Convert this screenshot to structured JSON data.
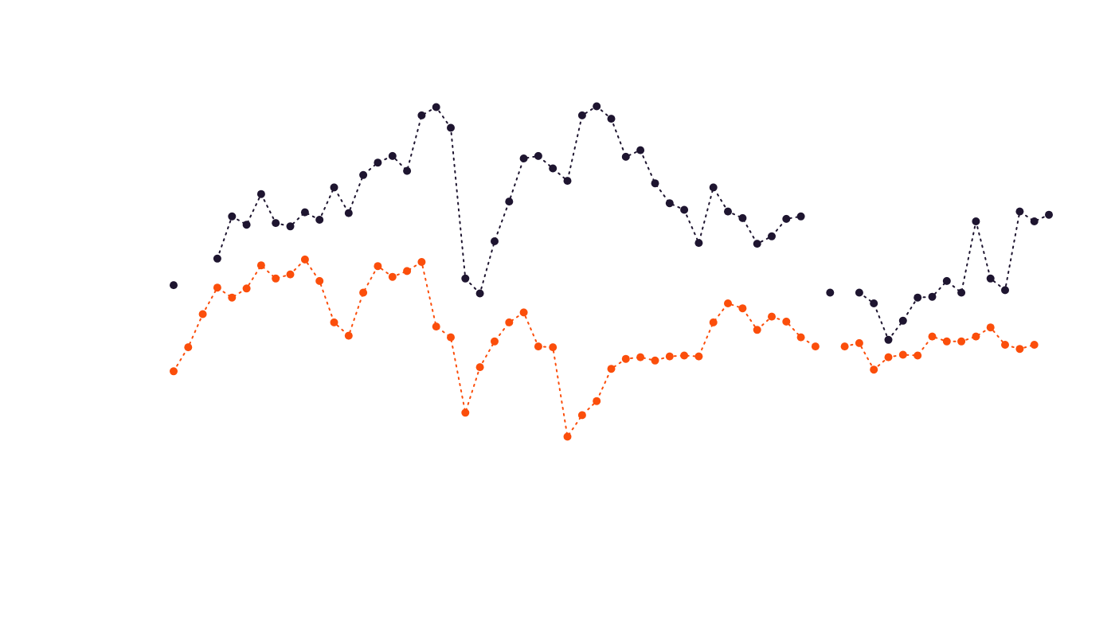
{
  "chart_data": {
    "type": "line",
    "title": "",
    "xlabel": "",
    "ylabel": "",
    "grid": false,
    "legend": "none",
    "x": [
      1,
      2,
      3,
      4,
      5,
      6,
      7,
      8,
      9,
      10,
      11,
      12,
      13,
      14,
      15,
      16,
      17,
      18,
      19,
      20,
      21,
      22,
      23,
      24,
      25,
      26,
      27,
      28,
      29,
      30,
      31,
      32,
      33,
      34,
      35,
      36,
      37,
      38,
      39,
      40,
      41,
      42,
      43,
      44,
      45,
      46,
      47,
      48,
      49,
      50,
      51,
      52,
      53,
      54,
      55,
      56,
      57,
      58,
      59,
      60,
      61
    ],
    "xlim": [
      1,
      61
    ],
    "ylim": [
      0,
      100
    ],
    "series": [
      {
        "color": "#1e1530",
        "line_style": "dotted",
        "marker": "circle",
        "values": [
          49.4,
          null,
          null,
          55.8,
          66.0,
          64.0,
          71.4,
          64.4,
          63.6,
          67.0,
          65.2,
          73.0,
          66.8,
          76.0,
          79.0,
          80.6,
          77.0,
          90.4,
          92.4,
          87.4,
          51.0,
          47.4,
          60.0,
          69.6,
          80.0,
          80.6,
          77.6,
          74.6,
          90.4,
          92.6,
          89.6,
          80.4,
          82.0,
          74.0,
          69.2,
          67.6,
          59.6,
          73.0,
          67.2,
          65.6,
          59.4,
          61.2,
          65.4,
          66.0,
          null,
          47.6,
          null,
          47.6,
          45.0,
          36.2,
          40.8,
          46.4,
          46.6,
          50.4,
          47.6,
          64.8,
          51.0,
          48.2,
          67.2,
          64.8,
          66.4
        ]
      },
      {
        "color": "#fb4e0b",
        "line_style": "dotted",
        "marker": "circle",
        "values": [
          28.6,
          34.4,
          42.4,
          48.8,
          46.4,
          48.6,
          54.2,
          51.0,
          52.0,
          55.6,
          50.4,
          40.4,
          37.2,
          47.6,
          54.0,
          51.4,
          52.8,
          55.0,
          39.4,
          36.8,
          18.6,
          29.6,
          35.8,
          40.4,
          42.8,
          34.6,
          34.4,
          12.8,
          18.0,
          21.4,
          29.2,
          31.6,
          32.0,
          31.2,
          32.2,
          32.4,
          32.2,
          40.4,
          45.0,
          43.8,
          38.6,
          41.8,
          40.6,
          36.8,
          34.6,
          null,
          34.6,
          35.4,
          29.0,
          32.0,
          32.6,
          32.4,
          37.0,
          35.8,
          35.8,
          37.0,
          39.2,
          35.0,
          34.0,
          35.0,
          null
        ]
      }
    ]
  }
}
